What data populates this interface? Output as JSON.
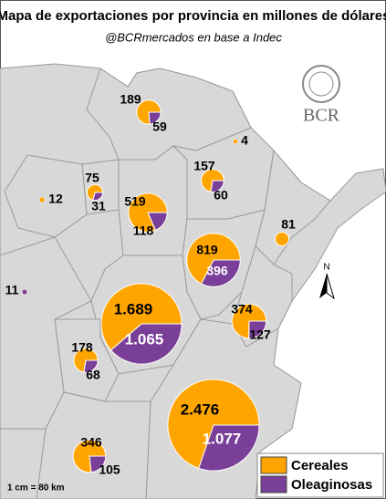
{
  "title": "Mapa de exportaciones por provincia en millones de dólares",
  "subtitle": "@BCRmercados en base a Indec",
  "logo": "BCR",
  "north": "N",
  "scale": "1 cm = 80 km",
  "legend": [
    {
      "name": "Cereales",
      "color": "#ffa500"
    },
    {
      "name": "Oleaginosas",
      "color": "#7a3f98"
    }
  ],
  "provinces": [
    {
      "values": [
        189,
        59
      ]
    },
    {
      "values": [
        4,
        null
      ]
    },
    {
      "values": [
        157,
        60
      ]
    },
    {
      "values": [
        75,
        31
      ]
    },
    {
      "values": [
        12,
        null
      ]
    },
    {
      "values": [
        519,
        118
      ]
    },
    {
      "values": [
        81,
        null
      ]
    },
    {
      "values": [
        819,
        396
      ]
    },
    {
      "values": [
        null,
        11
      ]
    },
    {
      "values": [
        1689,
        1065
      ],
      "value_labels": [
        "1.689",
        "1.065"
      ]
    },
    {
      "values": [
        374,
        127
      ]
    },
    {
      "values": [
        178,
        68
      ]
    },
    {
      "values": [
        2476,
        1077
      ],
      "value_labels": [
        "2.476",
        "1.077"
      ]
    },
    {
      "values": [
        346,
        105
      ]
    }
  ]
}
